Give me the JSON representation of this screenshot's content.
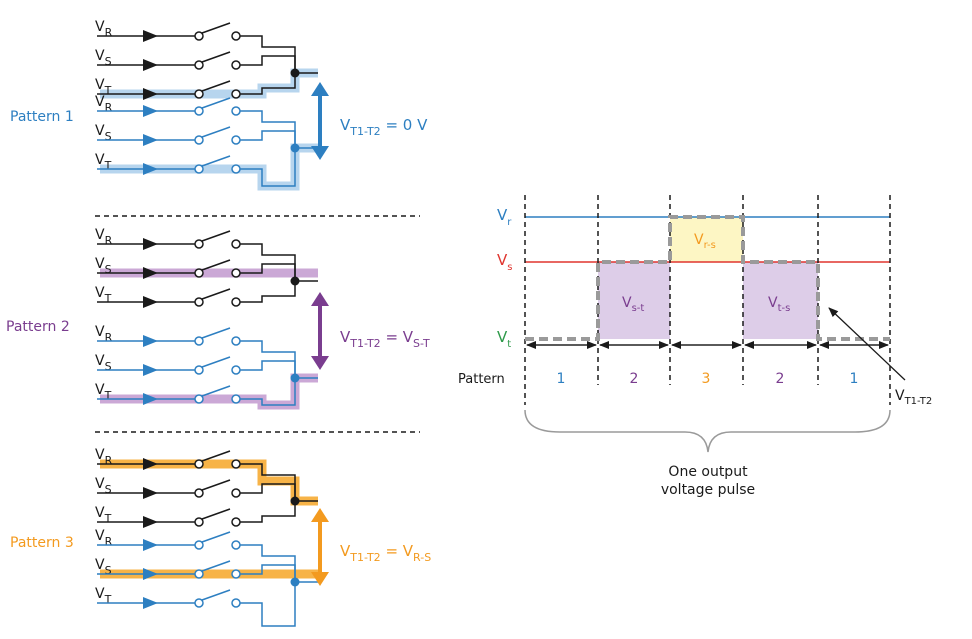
{
  "colors": {
    "black": "#1a1a1a",
    "blue": "#2d7fc1",
    "blue_highlight": "#b7d5ee",
    "purple": "#7a3d8f",
    "purple_highlight": "#cba8d6",
    "orange": "#f39a1f",
    "orange_highlight": "#f7b347",
    "green": "#2e9a4a",
    "red": "#e0352f",
    "dashed_line": "#9a9a9a",
    "yellow_fill": "#fdf6c4",
    "lilac_fill": "#ddcde8"
  },
  "line_labels": {
    "r": {
      "main": "V",
      "sub": "R"
    },
    "s": {
      "main": "V",
      "sub": "S"
    },
    "t": {
      "main": "V",
      "sub": "T"
    }
  },
  "patterns": [
    {
      "label": "Pattern 1",
      "eq_main": "V",
      "eq_sub": "T1-T2",
      "eq_rest": " = 0 V",
      "eq_sub2": ""
    },
    {
      "label": "Pattern 2",
      "eq_main": "V",
      "eq_sub": "T1-T2",
      "eq_rest": " = V",
      "eq_sub2": "S-T"
    },
    {
      "label": "Pattern 3",
      "eq_main": "V",
      "eq_sub": "T1-T2",
      "eq_rest": " = V",
      "eq_sub2": "R-S"
    }
  ],
  "waveform": {
    "levels": [
      {
        "main": "V",
        "sub": "r"
      },
      {
        "main": "V",
        "sub": "s"
      },
      {
        "main": "V",
        "sub": "t"
      }
    ],
    "row_label": "Pattern",
    "segments": [
      "1",
      "2",
      "3",
      "2",
      "1"
    ],
    "box_labels": [
      {
        "main": "V",
        "sub": "s-t"
      },
      {
        "main": "V",
        "sub": "r-s"
      },
      {
        "main": "V",
        "sub": "t-s"
      }
    ],
    "pointer_label": {
      "main": "V",
      "sub": "T1-T2"
    },
    "brace_caption": [
      "One output",
      "voltage pulse"
    ]
  }
}
